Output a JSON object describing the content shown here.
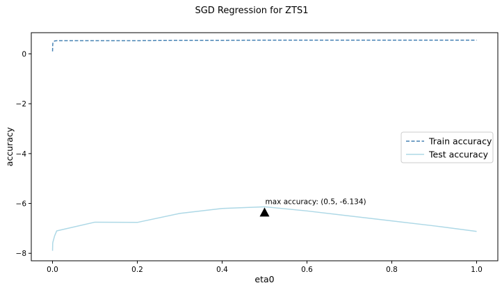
{
  "chart_data": {
    "type": "line",
    "title": "SGD Regression for ZTS1",
    "xlabel": "eta0",
    "ylabel": "accuracy",
    "xlim": [
      -0.05,
      1.05
    ],
    "ylim": [
      -8.3,
      0.85
    ],
    "x_ticks": [
      0.0,
      0.2,
      0.4,
      0.6,
      0.8,
      1.0
    ],
    "x_tick_labels": [
      "0.0",
      "0.2",
      "0.4",
      "0.6",
      "0.8",
      "1.0"
    ],
    "y_ticks": [
      0,
      -2,
      -4,
      -6,
      -8
    ],
    "y_tick_labels": [
      "0",
      "−2",
      "−4",
      "−6",
      "−8"
    ],
    "grid": false,
    "legend": "center-right",
    "series": [
      {
        "name": "Train accuracy",
        "color": "#4682b4",
        "style": "dashed",
        "x": [
          0.0001,
          0.0005,
          0.001,
          0.005,
          0.01,
          0.1,
          0.2,
          0.3,
          0.4,
          0.5,
          0.6,
          0.7,
          0.8,
          0.9,
          1.0
        ],
        "y": [
          0.1,
          0.35,
          0.45,
          0.52,
          0.53,
          0.53,
          0.53,
          0.54,
          0.54,
          0.55,
          0.55,
          0.55,
          0.55,
          0.55,
          0.55
        ]
      },
      {
        "name": "Test accuracy",
        "color": "#add8e6",
        "style": "solid",
        "x": [
          0.0001,
          0.0005,
          0.001,
          0.005,
          0.01,
          0.1,
          0.2,
          0.3,
          0.4,
          0.5,
          0.6,
          0.7,
          0.8,
          0.9,
          1.0
        ],
        "y": [
          -7.9,
          -7.6,
          -7.55,
          -7.3,
          -7.1,
          -6.75,
          -6.76,
          -6.4,
          -6.2,
          -6.134,
          -6.3,
          -6.5,
          -6.7,
          -6.9,
          -7.12
        ]
      }
    ],
    "annotation": {
      "text": "max accuracy: (0.5, -6.134)",
      "x": 0.5,
      "y": -6.134
    }
  }
}
